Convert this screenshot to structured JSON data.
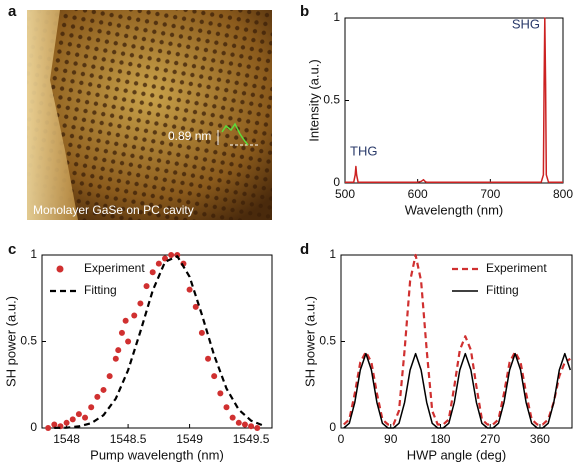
{
  "chart_data": [
    {
      "type": "image",
      "panel": "a",
      "scale_label": "0.89 nm",
      "caption": "Monolayer GaSe on PC cavity"
    },
    {
      "type": "line",
      "panel": "b",
      "xlabel": "Wavelength (nm)",
      "ylabel": "Intensity (a.u.)",
      "annotations": [
        "THG",
        "SHG"
      ],
      "xlim": [
        500,
        800
      ],
      "xticks": [
        500,
        600,
        700,
        800
      ],
      "ylim": [
        0,
        1
      ],
      "yticks": [
        0,
        0.5,
        1
      ],
      "series": [
        {
          "color": "#cc2222",
          "style": "line",
          "x": [
            500,
            512,
            514,
            515,
            516,
            518,
            540,
            600,
            605,
            608,
            610,
            612,
            650,
            700,
            760,
            770,
            773,
            774,
            775,
            776,
            777,
            780,
            800
          ],
          "values": [
            0.005,
            0.005,
            0.05,
            0.1,
            0.05,
            0.005,
            0.005,
            0.005,
            0.01,
            0.02,
            0.01,
            0.005,
            0.005,
            0.005,
            0.005,
            0.005,
            0.05,
            0.6,
            1,
            0.6,
            0.05,
            0.005,
            0.005
          ]
        }
      ]
    },
    {
      "type": "line",
      "panel": "c",
      "xlabel": "Pump wavelength (nm)",
      "ylabel": "SH power (a.u.)",
      "legend": "upper left",
      "xlim": [
        1547.8,
        1549.67
      ],
      "xticks": [
        1548,
        1548.5,
        1549,
        1549.5
      ],
      "ylim": [
        0,
        1
      ],
      "yticks": [
        0,
        0.5,
        1
      ],
      "series": [
        {
          "name": "Experiment",
          "color": "#d03030",
          "style": "markers",
          "x": [
            1547.85,
            1547.9,
            1547.95,
            1548.0,
            1548.05,
            1548.1,
            1548.15,
            1548.2,
            1548.25,
            1548.3,
            1548.35,
            1548.4,
            1548.42,
            1548.45,
            1548.48,
            1548.5,
            1548.55,
            1548.6,
            1548.65,
            1548.7,
            1548.75,
            1548.8,
            1548.85,
            1548.9,
            1548.95,
            1549.0,
            1549.05,
            1549.1,
            1549.15,
            1549.2,
            1549.25,
            1549.3,
            1549.35,
            1549.4,
            1549.45,
            1549.5,
            1549.55
          ],
          "values": [
            0.0,
            0.02,
            0.01,
            0.03,
            0.05,
            0.08,
            0.06,
            0.12,
            0.18,
            0.22,
            0.3,
            0.4,
            0.45,
            0.55,
            0.62,
            0.5,
            0.65,
            0.72,
            0.82,
            0.9,
            0.95,
            0.98,
            1.0,
            1.0,
            0.95,
            0.8,
            0.7,
            0.55,
            0.4,
            0.3,
            0.2,
            0.12,
            0.06,
            0.03,
            0.02,
            0.01,
            0.0
          ]
        },
        {
          "name": "Fitting",
          "color": "#000000",
          "style": "dashed",
          "x": [
            1547.9,
            1548.0,
            1548.1,
            1548.2,
            1548.3,
            1548.4,
            1548.5,
            1548.6,
            1548.7,
            1548.8,
            1548.9,
            1549.0,
            1549.1,
            1549.2,
            1549.3,
            1549.4,
            1549.5,
            1549.6
          ],
          "values": [
            0.0005,
            0.002,
            0.009,
            0.028,
            0.074,
            0.17,
            0.334,
            0.558,
            0.794,
            0.96,
            0.993,
            0.874,
            0.655,
            0.419,
            0.228,
            0.106,
            0.042,
            0.014
          ]
        }
      ]
    },
    {
      "type": "line",
      "panel": "d",
      "xlabel": "HWP angle (deg)",
      "ylabel": "SH power (a.u.)",
      "legend": "upper right",
      "xlim": [
        0,
        418
      ],
      "xticks": [
        0,
        90,
        180,
        270,
        360
      ],
      "ylim": [
        0,
        1
      ],
      "yticks": [
        0,
        0.5,
        1
      ],
      "series": [
        {
          "name": "Experiment",
          "color": "#d03030",
          "style": "dashed",
          "x": [
            5,
            15,
            25,
            35,
            45,
            55,
            65,
            75,
            85,
            95,
            105,
            115,
            125,
            135,
            145,
            155,
            165,
            175,
            185,
            195,
            205,
            215,
            225,
            235,
            245,
            255,
            265,
            275,
            285,
            295,
            305,
            315,
            325,
            335,
            345,
            355,
            365,
            375,
            385,
            395,
            405,
            415
          ],
          "values": [
            0.02,
            0.05,
            0.2,
            0.38,
            0.44,
            0.38,
            0.2,
            0.05,
            0.02,
            0.02,
            0.1,
            0.45,
            0.85,
            1.0,
            0.85,
            0.45,
            0.1,
            0.02,
            0.02,
            0.05,
            0.24,
            0.45,
            0.53,
            0.45,
            0.24,
            0.05,
            0.02,
            0.02,
            0.05,
            0.2,
            0.38,
            0.44,
            0.38,
            0.2,
            0.05,
            0.02,
            0.02,
            0.05,
            0.15,
            0.3,
            0.38,
            0.4
          ]
        },
        {
          "name": "Fitting",
          "color": "#000000",
          "style": "line",
          "x": [
            5,
            15,
            25,
            35,
            45,
            55,
            65,
            75,
            85,
            95,
            105,
            115,
            125,
            135,
            145,
            155,
            165,
            175,
            185,
            195,
            205,
            215,
            225,
            235,
            245,
            255,
            265,
            275,
            285,
            295,
            305,
            315,
            325,
            335,
            345,
            355,
            365,
            375,
            385,
            395,
            405,
            415
          ],
          "values": [
            0,
            0.027,
            0.148,
            0.335,
            0.43,
            0.335,
            0.148,
            0.027,
            0,
            0,
            0.027,
            0.148,
            0.335,
            0.43,
            0.335,
            0.148,
            0.027,
            0,
            0,
            0.027,
            0.148,
            0.335,
            0.43,
            0.335,
            0.148,
            0.027,
            0,
            0,
            0.027,
            0.148,
            0.335,
            0.43,
            0.335,
            0.148,
            0.027,
            0,
            0,
            0.027,
            0.148,
            0.335,
            0.43,
            0.335
          ]
        }
      ]
    }
  ]
}
